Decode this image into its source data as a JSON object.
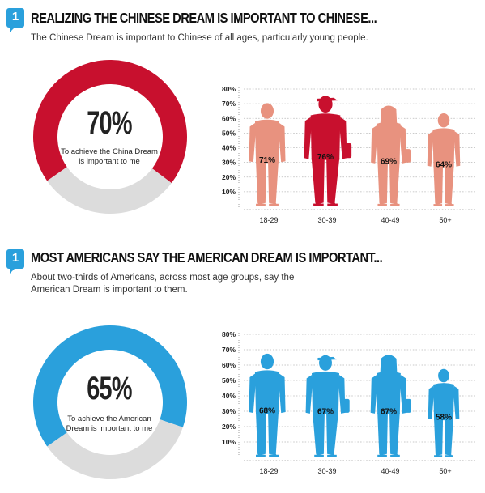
{
  "sections": [
    {
      "badge": "1",
      "title": "REALIZING THE CHINESE DREAM IS IMPORTANT TO CHINESE...",
      "subtitle_lines": [
        "The Chinese Dream is important to Chinese of all ages, particularly young people."
      ],
      "donut": {
        "value_label": "70%",
        "caption_lines": [
          "To achieve the China Dream",
          "is important to me"
        ]
      }
    },
    {
      "badge": "1",
      "title": "MOST AMERICANS SAY THE AMERICAN DREAM IS IMPORTANT...",
      "subtitle_lines": [
        "About two-thirds of Americans, across most age groups, say the",
        "American Dream is important to them."
      ],
      "donut": {
        "value_label": "65%",
        "caption_lines": [
          "To achieve the American",
          "Dream is important to me"
        ]
      }
    }
  ],
  "chart_data": [
    {
      "type": "pie",
      "title": "To achieve the China Dream is important to me",
      "values": [
        70,
        30
      ],
      "colors": [
        "#c8102e",
        "#dcdcdc"
      ]
    },
    {
      "type": "bar",
      "categories": [
        "18-29",
        "30-39",
        "40-49",
        "50+"
      ],
      "values": [
        71,
        76,
        69,
        64
      ],
      "data_labels": [
        "71%",
        "76%",
        "69%",
        "64%"
      ],
      "highlight_index": 1,
      "ylim": [
        0,
        80
      ],
      "yticks": [
        "10%",
        "20%",
        "30%",
        "40%",
        "50%",
        "60%",
        "70%",
        "80%"
      ],
      "colors": {
        "normal": "#e8927f",
        "highlight": "#c8102e"
      },
      "grid": true
    },
    {
      "type": "pie",
      "title": "To achieve the American Dream is important to me",
      "values": [
        65,
        35
      ],
      "colors": [
        "#2aa0dc",
        "#dcdcdc"
      ]
    },
    {
      "type": "bar",
      "categories": [
        "18-29",
        "30-39",
        "40-49",
        "50+"
      ],
      "values": [
        68,
        67,
        67,
        58
      ],
      "data_labels": [
        "68%",
        "67%",
        "67%",
        "58%"
      ],
      "ylim": [
        0,
        80
      ],
      "yticks": [
        "10%",
        "20%",
        "30%",
        "40%",
        "50%",
        "60%",
        "70%",
        "80%"
      ],
      "colors": {
        "normal": "#2aa0dc"
      },
      "grid": true
    }
  ]
}
